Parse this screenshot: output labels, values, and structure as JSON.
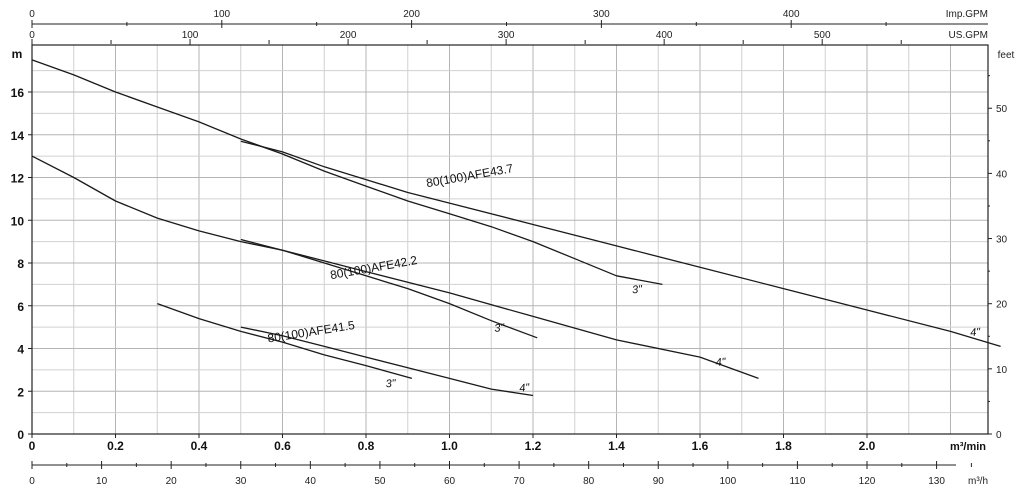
{
  "chart_data": {
    "type": "line",
    "axes": {
      "x_primary": {
        "unit": "m³/min",
        "range": [
          0,
          2.3
        ],
        "ticks": [
          "0",
          "0.2",
          "0.4",
          "0.6",
          "0.8",
          "1.0",
          "1.2",
          "1.4",
          "1.6",
          "1.8",
          "2.0"
        ]
      },
      "x_m3h": {
        "unit": "m³/h",
        "ticks": [
          "0",
          "10",
          "20",
          "30",
          "40",
          "50",
          "60",
          "70",
          "80",
          "90",
          "100",
          "110",
          "120",
          "130"
        ]
      },
      "x_impgpm": {
        "unit": "Imp.GPM",
        "ticks": [
          "0",
          "100",
          "200",
          "300",
          "400"
        ]
      },
      "x_usgpm": {
        "unit": "US.GPM",
        "ticks": [
          "0",
          "100",
          "200",
          "300",
          "400",
          "500"
        ]
      },
      "y_left": {
        "unit": "m",
        "range": [
          0,
          18
        ],
        "ticks": [
          "0",
          "2",
          "4",
          "6",
          "8",
          "10",
          "12",
          "14",
          "16"
        ]
      },
      "y_right": {
        "unit": "feet",
        "ticks": [
          "0",
          "10",
          "20",
          "30",
          "40",
          "50"
        ]
      }
    },
    "grid": true,
    "series": [
      {
        "curve": "AFE43.7-3",
        "x": [
          0.0,
          0.1,
          0.2,
          0.3,
          0.4,
          0.5,
          0.6,
          0.7,
          0.8,
          0.9,
          1.0,
          1.1,
          1.2,
          1.3,
          1.4,
          1.51
        ],
        "y": [
          17.5,
          16.8,
          16.0,
          15.3,
          14.6,
          13.8,
          13.1,
          12.3,
          11.6,
          10.9,
          10.3,
          9.7,
          9.0,
          8.2,
          7.4,
          7.0
        ]
      },
      {
        "curve": "AFE43.7-4",
        "x": [
          0.5,
          0.6,
          0.7,
          0.8,
          0.9,
          1.0,
          1.2,
          1.4,
          1.6,
          1.8,
          2.0,
          2.2,
          2.32
        ],
        "y": [
          13.7,
          13.2,
          12.5,
          11.9,
          11.3,
          10.8,
          9.8,
          8.8,
          7.8,
          6.8,
          5.8,
          4.8,
          4.1
        ]
      },
      {
        "curve": "AFE42.2-3",
        "x": [
          0.0,
          0.1,
          0.2,
          0.3,
          0.4,
          0.5,
          0.6,
          0.7,
          0.8,
          0.9,
          1.0,
          1.1,
          1.21
        ],
        "y": [
          13.0,
          12.0,
          10.9,
          10.1,
          9.5,
          9.0,
          8.6,
          8.0,
          7.4,
          6.8,
          6.1,
          5.3,
          4.5
        ]
      },
      {
        "curve": "AFE42.2-4",
        "x": [
          0.5,
          0.6,
          0.8,
          1.0,
          1.2,
          1.4,
          1.6,
          1.74
        ],
        "y": [
          9.1,
          8.6,
          7.6,
          6.6,
          5.5,
          4.4,
          3.6,
          2.6
        ]
      },
      {
        "curve": "AFE41.5-3",
        "x": [
          0.3,
          0.4,
          0.5,
          0.6,
          0.7,
          0.8,
          0.91
        ],
        "y": [
          6.1,
          5.4,
          4.8,
          4.3,
          3.7,
          3.2,
          2.6
        ]
      },
      {
        "curve": "AFE41.5-4",
        "x": [
          0.5,
          0.6,
          0.7,
          0.8,
          0.9,
          1.0,
          1.1,
          1.2
        ],
        "y": [
          5.0,
          4.6,
          4.1,
          3.6,
          3.1,
          2.6,
          2.1,
          1.8
        ]
      }
    ],
    "annotations": [
      {
        "text": "80(100)AFE43.7",
        "x": 1.05,
        "y": 11.9,
        "rotate": -10
      },
      {
        "text": "80(100)AFE42.2",
        "x": 0.82,
        "y": 7.6,
        "rotate": -10
      },
      {
        "text": "80(100)AFE41.5",
        "x": 0.67,
        "y": 4.6,
        "rotate": -9
      },
      {
        "text": "3\"",
        "x": 1.45,
        "y": 6.6,
        "rotate": -5
      },
      {
        "text": "4\"",
        "x": 2.26,
        "y": 4.6,
        "rotate": -5
      },
      {
        "text": "3\"",
        "x": 1.12,
        "y": 4.8,
        "rotate": -5
      },
      {
        "text": "4\"",
        "x": 1.65,
        "y": 3.2,
        "rotate": -5
      },
      {
        "text": "3\"",
        "x": 0.86,
        "y": 2.2,
        "rotate": -5
      },
      {
        "text": "4\"",
        "x": 1.18,
        "y": 2.0,
        "rotate": -5
      }
    ]
  }
}
